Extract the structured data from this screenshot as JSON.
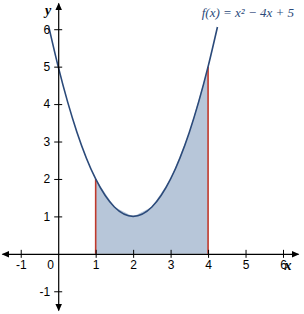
{
  "chart_data": {
    "type": "line",
    "xlabel": "x",
    "ylabel": "y",
    "xlim": [
      -1.5,
      6.4
    ],
    "ylim": [
      -1.5,
      6.7
    ],
    "xticks": [
      -1,
      0,
      1,
      2,
      3,
      4,
      5,
      6
    ],
    "yticks": [
      -1,
      1,
      2,
      3,
      4,
      5,
      6
    ],
    "grid": false,
    "series": [
      {
        "type": "line",
        "name": "f(x) = x² − 4x + 5",
        "color": "#2b4a7a",
        "x": [
          -0.25,
          0,
          0.5,
          1,
          1.5,
          2,
          2.5,
          3,
          3.5,
          4,
          4.25
        ],
        "values": [
          6.06,
          5,
          3.25,
          2,
          1.25,
          1,
          1.25,
          2,
          3.25,
          5,
          6.06
        ]
      },
      {
        "type": "area",
        "color": "#b7c6d9",
        "x": [
          1,
          1.5,
          2,
          2.5,
          3,
          3.5,
          4
        ],
        "values": [
          2,
          1.25,
          1,
          1.25,
          2,
          3.25,
          5
        ]
      },
      {
        "type": "rule",
        "color": "#c0392b",
        "x": [
          1,
          4
        ],
        "values": [
          2,
          5
        ]
      }
    ]
  }
}
